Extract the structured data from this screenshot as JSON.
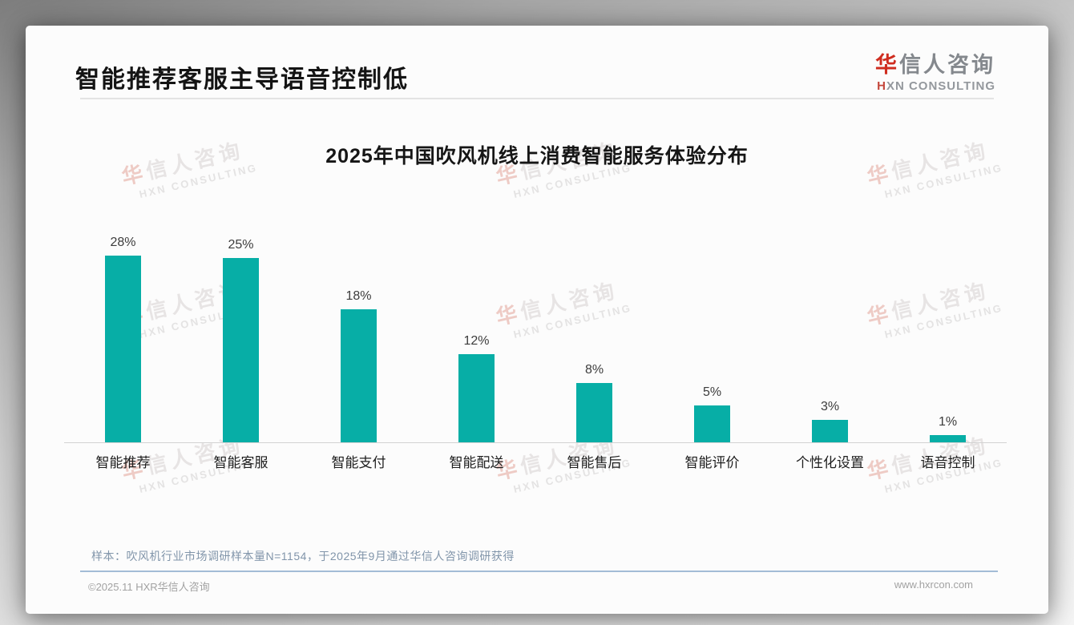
{
  "page": {
    "title": "智能推荐客服主导语音控制低"
  },
  "logo": {
    "cn": "华信人咨询",
    "en": "HXN CONSULTING"
  },
  "watermark": {
    "cn": "华信人咨询",
    "en": "HXN CONSULTING"
  },
  "chart_data": {
    "type": "bar",
    "title": "2025年中国吹风机线上消费智能服务体验分布",
    "categories": [
      "智能推荐",
      "智能客服",
      "智能支付",
      "智能配送",
      "智能售后",
      "智能评价",
      "个性化设置",
      "语音控制"
    ],
    "values": [
      28,
      25,
      18,
      12,
      8,
      5,
      3,
      1
    ],
    "value_suffix": "%",
    "xlabel": "",
    "ylabel": "",
    "ylim": [
      0,
      30
    ],
    "grid": false,
    "legend": "none",
    "bar_color": "#07aea6"
  },
  "note": "样本：吹风机行业市场调研样本量N=1154，于2025年9月通过华信人咨询调研获得",
  "footer": {
    "left": "©2025.11 HXR华信人咨询",
    "right": "www.hxrcon.com"
  },
  "colors": {
    "bar": "#07aea6",
    "accent_red": "#cf2d20",
    "note_text": "#8195aa"
  }
}
